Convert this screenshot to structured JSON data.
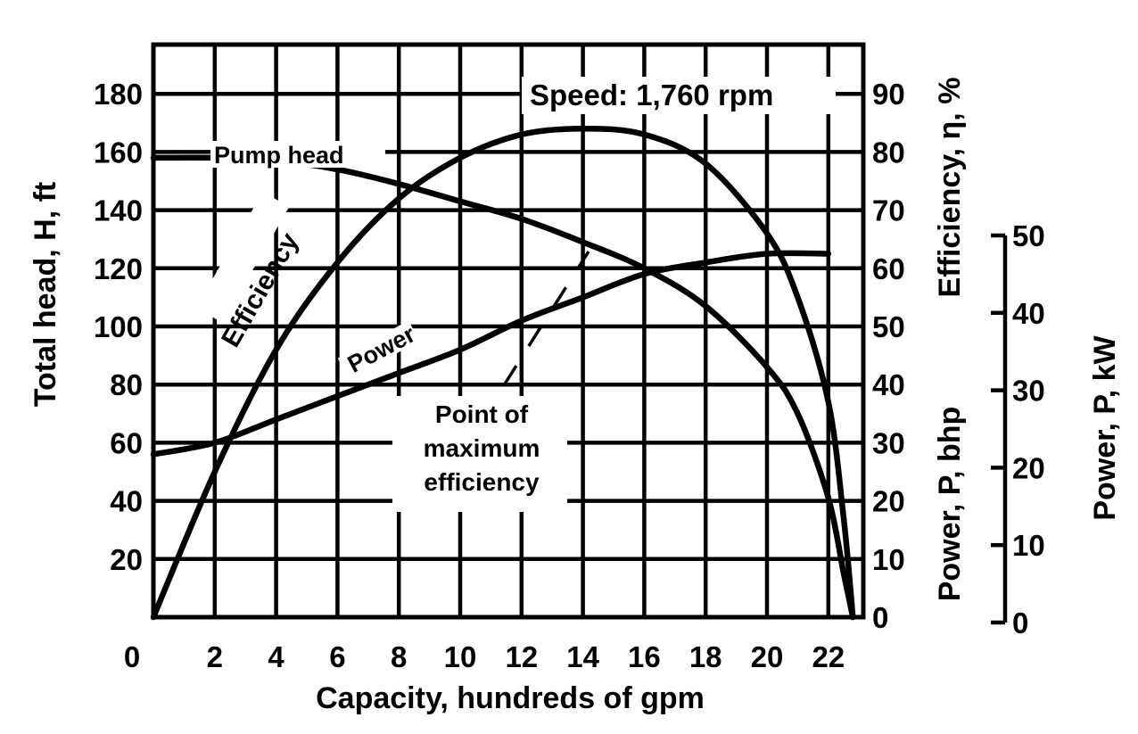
{
  "chart_data": {
    "type": "line",
    "xlabel": "Capacity, hundreds of gpm",
    "x_ticks": [
      "0",
      "2",
      "4",
      "6",
      "8",
      "10",
      "12",
      "14",
      "16",
      "18",
      "20",
      "22"
    ],
    "xlim": [
      0,
      24
    ],
    "ylabel_left": "Total head, H, ft",
    "y_ticks_left": [
      "20",
      "40",
      "60",
      "80",
      "100",
      "120",
      "140",
      "160",
      "180"
    ],
    "ylim_left": [
      0,
      200
    ],
    "ylabel_right_efficiency": "Efficiency, η, %",
    "y_ticks_right_efficiency": [
      "0",
      "10",
      "20",
      "30",
      "40",
      "50",
      "60",
      "70",
      "80",
      "90"
    ],
    "ylim_right_efficiency": [
      0,
      100
    ],
    "ylabel_right_bhp": "Power, P, bhp",
    "ylabel_right_kw": "Power, P, kW",
    "y_ticks_right_kw": [
      "0",
      "10",
      "20",
      "30",
      "40",
      "50"
    ],
    "annotation_speed": "Speed: 1,760 rpm",
    "annotation_max_efficiency": [
      "Point of",
      "maximum",
      "efficiency"
    ],
    "grid": true,
    "series": [
      {
        "name": "Pump head",
        "axis": "head_ft",
        "x": [
          0,
          2,
          4,
          6,
          8,
          10,
          12,
          14,
          16,
          18,
          20,
          21,
          22,
          22.5,
          22.8
        ],
        "y": [
          158,
          158,
          157,
          154,
          149,
          143,
          137,
          129,
          120,
          107,
          86,
          70,
          41,
          15,
          0
        ]
      },
      {
        "name": "Efficiency",
        "axis": "efficiency_pct",
        "x": [
          0,
          2,
          4,
          6,
          8,
          10,
          12,
          14,
          16,
          18,
          20,
          21,
          22,
          22.5,
          22.8
        ],
        "y": [
          0,
          25,
          46,
          61,
          72,
          79,
          83,
          84,
          83,
          78,
          66,
          55,
          37,
          17,
          0
        ]
      },
      {
        "name": "Power",
        "axis": "power_bhp",
        "x": [
          0,
          2,
          4,
          6,
          8,
          10,
          12,
          14,
          16,
          18,
          20,
          22
        ],
        "y": [
          28,
          30,
          34,
          38,
          42,
          46,
          51,
          55,
          59,
          61,
          62.5,
          62.5
        ]
      }
    ]
  }
}
